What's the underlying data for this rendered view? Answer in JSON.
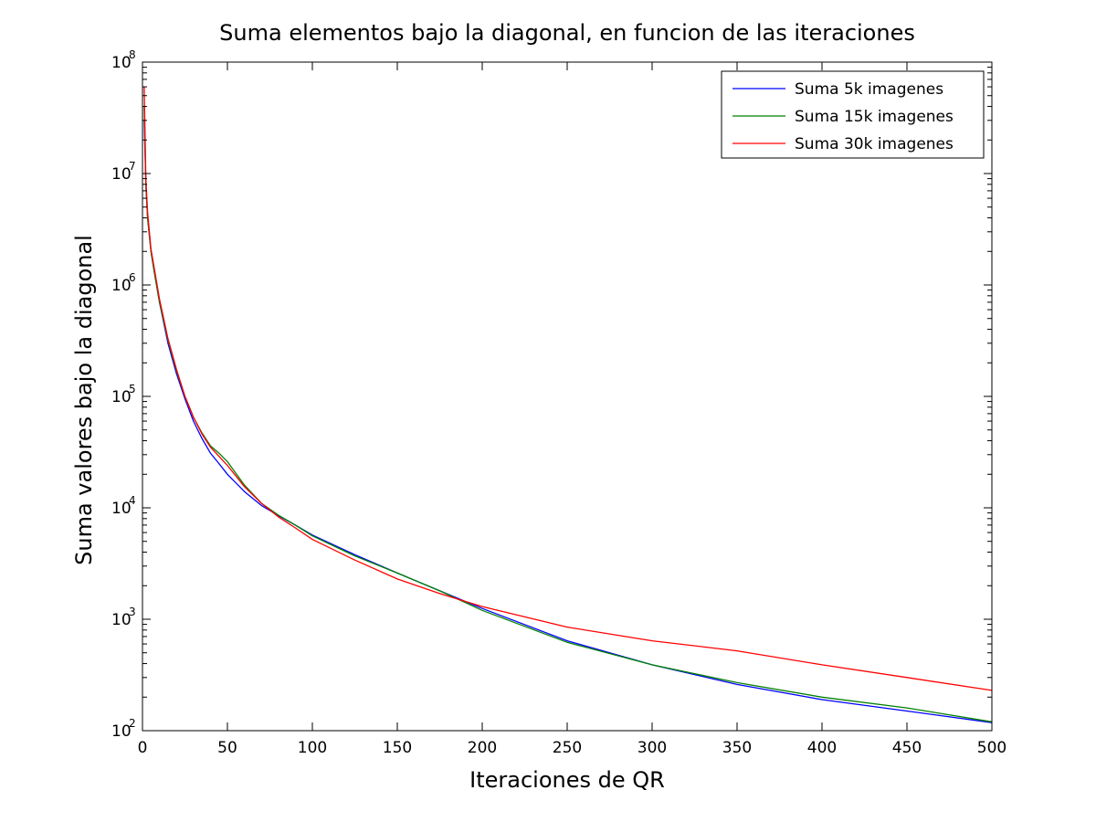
{
  "figure": {
    "title": "Suma elementos bajo la diagonal, en funcion de las iteraciones",
    "xlabel": "Iteraciones de QR",
    "ylabel": "Suma valores bajo la diagonal"
  },
  "chart_data": {
    "type": "line",
    "title": "Suma elementos bajo la diagonal, en funcion de las iteraciones",
    "xlabel": "Iteraciones de QR",
    "ylabel": "Suma valores bajo la diagonal",
    "xlim": [
      0,
      500
    ],
    "ylim": [
      100,
      100000000
    ],
    "yscale": "log",
    "grid": false,
    "legend_position": "top-right",
    "xticks": [
      0,
      50,
      100,
      150,
      200,
      250,
      300,
      350,
      400,
      450,
      500
    ],
    "xtick_labels": [
      "0",
      "50",
      "100",
      "150",
      "200",
      "250",
      "300",
      "350",
      "400",
      "450",
      "500"
    ],
    "yticks": [
      100,
      1000,
      10000,
      100000,
      1000000,
      10000000,
      100000000
    ],
    "ytick_labels": [
      {
        "base": "10",
        "exp": "2"
      },
      {
        "base": "10",
        "exp": "3"
      },
      {
        "base": "10",
        "exp": "4"
      },
      {
        "base": "10",
        "exp": "5"
      },
      {
        "base": "10",
        "exp": "6"
      },
      {
        "base": "10",
        "exp": "7"
      },
      {
        "base": "10",
        "exp": "8"
      }
    ],
    "series": [
      {
        "name": "Suma 5k imagenes",
        "color": "#0000ff",
        "x": [
          1,
          2,
          3,
          5,
          7,
          10,
          15,
          20,
          25,
          30,
          35,
          40,
          45,
          50,
          60,
          70,
          80,
          90,
          100,
          125,
          150,
          175,
          200,
          250,
          300,
          350,
          400,
          450,
          500
        ],
        "y": [
          30000000,
          8000000,
          4000000,
          2000000,
          1300000,
          700000,
          300000,
          160000,
          95000,
          60000,
          42000,
          31000,
          25000,
          20000,
          14000,
          10500,
          8500,
          7000,
          5700,
          3800,
          2600,
          1800,
          1250,
          640,
          390,
          260,
          190,
          150,
          118
        ]
      },
      {
        "name": "Suma 15k imagenes",
        "color": "#008000",
        "x": [
          1,
          2,
          3,
          5,
          7,
          10,
          15,
          20,
          25,
          30,
          35,
          40,
          45,
          50,
          60,
          70,
          80,
          90,
          100,
          125,
          150,
          175,
          200,
          250,
          300,
          350,
          400,
          450,
          500
        ],
        "y": [
          40000000,
          8000000,
          4000000,
          2000000,
          1300000,
          700000,
          320000,
          170000,
          100000,
          65000,
          47000,
          36000,
          31000,
          26000,
          16000,
          11000,
          8600,
          7000,
          5600,
          3700,
          2600,
          1800,
          1200,
          620,
          390,
          270,
          200,
          160,
          120
        ]
      },
      {
        "name": "Suma 30k imagenes",
        "color": "#ff0000",
        "x": [
          1,
          2,
          3,
          5,
          7,
          10,
          15,
          20,
          25,
          30,
          35,
          40,
          45,
          50,
          60,
          70,
          80,
          90,
          100,
          125,
          150,
          175,
          200,
          250,
          300,
          350,
          400,
          450,
          500
        ],
        "y": [
          60000000,
          9000000,
          4500000,
          2100000,
          1400000,
          750000,
          330000,
          175000,
          100000,
          65000,
          46000,
          35000,
          29000,
          24000,
          15500,
          11000,
          8300,
          6600,
          5200,
          3400,
          2300,
          1700,
          1300,
          850,
          640,
          520,
          390,
          300,
          230
        ]
      }
    ]
  }
}
